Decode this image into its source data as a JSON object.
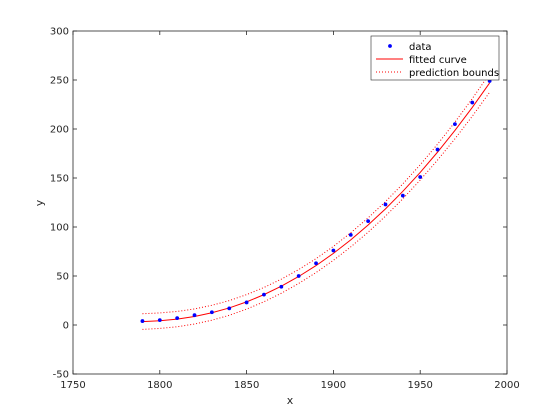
{
  "chart_data": {
    "type": "scatter",
    "title": "",
    "xlabel": "x",
    "ylabel": "y",
    "xlim": [
      1750,
      2000
    ],
    "ylim": [
      -50,
      300
    ],
    "x_ticks": [
      1750,
      1800,
      1850,
      1900,
      1950,
      2000
    ],
    "y_ticks": [
      -50,
      0,
      50,
      100,
      150,
      200,
      250,
      300
    ],
    "x_tick_labels": [
      "1750",
      "1800",
      "1850",
      "1900",
      "1950",
      "2000"
    ],
    "y_tick_labels": [
      "-50",
      "0",
      "50",
      "100",
      "150",
      "200",
      "250",
      "300"
    ],
    "grid": false,
    "legend_position": "top-right",
    "legend": [
      "data",
      "fitted curve",
      "prediction bounds"
    ],
    "series": [
      {
        "name": "data",
        "style": "points",
        "color": "#0000ff",
        "x": [
          1790,
          1800,
          1810,
          1820,
          1830,
          1840,
          1850,
          1860,
          1870,
          1880,
          1890,
          1900,
          1910,
          1920,
          1930,
          1940,
          1950,
          1960,
          1970,
          1980,
          1990
        ],
        "y": [
          4,
          5,
          7,
          10,
          13,
          17,
          23,
          31,
          39,
          50,
          63,
          76,
          92,
          106,
          123,
          132,
          151,
          179,
          205,
          227,
          249
        ]
      },
      {
        "name": "fitted curve",
        "style": "solid",
        "color": "#ff0000",
        "x": [
          1790,
          1800,
          1810,
          1820,
          1830,
          1840,
          1850,
          1860,
          1870,
          1880,
          1890,
          1900,
          1910,
          1920,
          1930,
          1940,
          1950,
          1960,
          1970,
          1980,
          1990
        ],
        "y": [
          3.5,
          4.4,
          6.0,
          8.7,
          12.5,
          17.4,
          23.6,
          31.0,
          39.6,
          49.5,
          60.6,
          73.1,
          86.9,
          102.0,
          118.5,
          136.4,
          155.7,
          176.4,
          198.5,
          222.0,
          247.0
        ]
      },
      {
        "name": "prediction bounds",
        "style": "dotted",
        "color": "#ff0000",
        "x": [
          1790,
          1800,
          1810,
          1820,
          1830,
          1840,
          1850,
          1860,
          1870,
          1880,
          1890,
          1900,
          1910,
          1920,
          1930,
          1940,
          1950,
          1960,
          1970,
          1980,
          1990
        ],
        "y_upper": [
          11.5,
          12.3,
          13.8,
          16.4,
          20.1,
          24.9,
          31.0,
          38.3,
          46.8,
          56.6,
          67.7,
          80.2,
          94.1,
          109.3,
          125.9,
          144.0,
          163.5,
          184.5,
          207.0,
          231.0,
          256.5
        ],
        "y_lower": [
          -4.5,
          -3.5,
          -1.8,
          1.0,
          4.9,
          9.9,
          16.2,
          23.7,
          32.4,
          42.4,
          53.5,
          66.0,
          79.7,
          94.7,
          111.1,
          128.8,
          147.9,
          168.3,
          190.0,
          213.0,
          237.5
        ]
      }
    ]
  }
}
